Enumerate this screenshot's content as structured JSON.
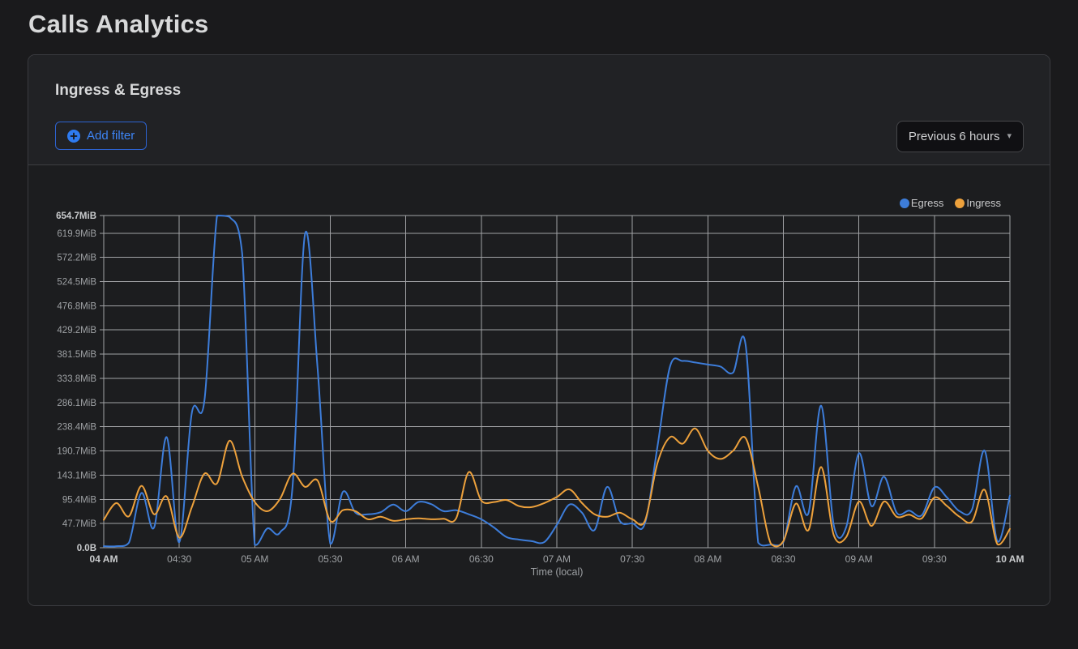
{
  "page": {
    "title": "Calls Analytics"
  },
  "panel": {
    "title": "Ingress & Egress",
    "add_filter_label": "Add filter",
    "time_range_label": "Previous 6 hours",
    "caret": "▾"
  },
  "colors": {
    "accent_blue": "#3d85f6",
    "accent_blue_border": "#2d63d0",
    "grid": "#b9babd",
    "axis_label": "#9ea1a4",
    "axis_label_strong": "#c9cbcd",
    "egress_line": "#3d7dda",
    "ingress_line": "#eda13c"
  },
  "chart_data": {
    "type": "line",
    "title": "Ingress & Egress",
    "xlabel": "Time (local)",
    "ylabel": "",
    "ylim": [
      0,
      654.7
    ],
    "grid": true,
    "legend_position": "top-right",
    "x_start_min": 240,
    "x_end_min": 600,
    "x_step_min": 5,
    "x_ticks": [
      {
        "label": "04 AM",
        "min": 240,
        "bold": true
      },
      {
        "label": "04:30",
        "min": 270,
        "bold": false
      },
      {
        "label": "05 AM",
        "min": 300,
        "bold": false
      },
      {
        "label": "05:30",
        "min": 330,
        "bold": false
      },
      {
        "label": "06 AM",
        "min": 360,
        "bold": false
      },
      {
        "label": "06:30",
        "min": 390,
        "bold": false
      },
      {
        "label": "07 AM",
        "min": 420,
        "bold": false
      },
      {
        "label": "07:30",
        "min": 450,
        "bold": false
      },
      {
        "label": "08 AM",
        "min": 480,
        "bold": false
      },
      {
        "label": "08:30",
        "min": 510,
        "bold": false
      },
      {
        "label": "09 AM",
        "min": 540,
        "bold": false
      },
      {
        "label": "09:30",
        "min": 570,
        "bold": false
      },
      {
        "label": "10 AM",
        "min": 600,
        "bold": true
      }
    ],
    "y_ticks": [
      {
        "label": "654.7MiB",
        "value": 654.7,
        "bold": true
      },
      {
        "label": "619.9MiB",
        "value": 619.9,
        "bold": false
      },
      {
        "label": "572.2MiB",
        "value": 572.2,
        "bold": false
      },
      {
        "label": "524.5MiB",
        "value": 524.5,
        "bold": false
      },
      {
        "label": "476.8MiB",
        "value": 476.8,
        "bold": false
      },
      {
        "label": "429.2MiB",
        "value": 429.2,
        "bold": false
      },
      {
        "label": "381.5MiB",
        "value": 381.5,
        "bold": false
      },
      {
        "label": "333.8MiB",
        "value": 333.8,
        "bold": false
      },
      {
        "label": "286.1MiB",
        "value": 286.1,
        "bold": false
      },
      {
        "label": "238.4MiB",
        "value": 238.4,
        "bold": false
      },
      {
        "label": "190.7MiB",
        "value": 190.7,
        "bold": false
      },
      {
        "label": "143.1MiB",
        "value": 143.1,
        "bold": false
      },
      {
        "label": "95.4MiB",
        "value": 95.4,
        "bold": false
      },
      {
        "label": "47.7MiB",
        "value": 47.7,
        "bold": false
      },
      {
        "label": "0.0B",
        "value": 0,
        "bold": true
      }
    ],
    "series": [
      {
        "name": "Egress",
        "color": "#3d7dda",
        "values": [
          3,
          3,
          10,
          108,
          40,
          218,
          11,
          266,
          290,
          654.7,
          652,
          580,
          6,
          38,
          30,
          120,
          619,
          350,
          8,
          110,
          69,
          66,
          70,
          85,
          72,
          90,
          86,
          72,
          74,
          66,
          56,
          40,
          21,
          16,
          13,
          11,
          45,
          85,
          69,
          35,
          120,
          53,
          48,
          48,
          200,
          358,
          368,
          365,
          361,
          357,
          345,
          400,
          10,
          6,
          11,
          121,
          69,
          280,
          45,
          41,
          186,
          82,
          140,
          69,
          73,
          64,
          119,
          99,
          72,
          76,
          191,
          13,
          103
        ]
      },
      {
        "name": "Ingress",
        "color": "#eda13c",
        "values": [
          55,
          88,
          62,
          122,
          66,
          101,
          20,
          80,
          146,
          127,
          211,
          140,
          90,
          72,
          96,
          146,
          120,
          132,
          53,
          74,
          72,
          56,
          61,
          53,
          56,
          58,
          56,
          57,
          58,
          149,
          93,
          90,
          94,
          82,
          80,
          88,
          100,
          115,
          88,
          66,
          61,
          69,
          56,
          53,
          167,
          218,
          205,
          235,
          191,
          175,
          191,
          216,
          120,
          8,
          13,
          87,
          35,
          159,
          25,
          21,
          91,
          43,
          91,
          61,
          65,
          58,
          99,
          82,
          61,
          52,
          114,
          7,
          37
        ]
      }
    ]
  }
}
